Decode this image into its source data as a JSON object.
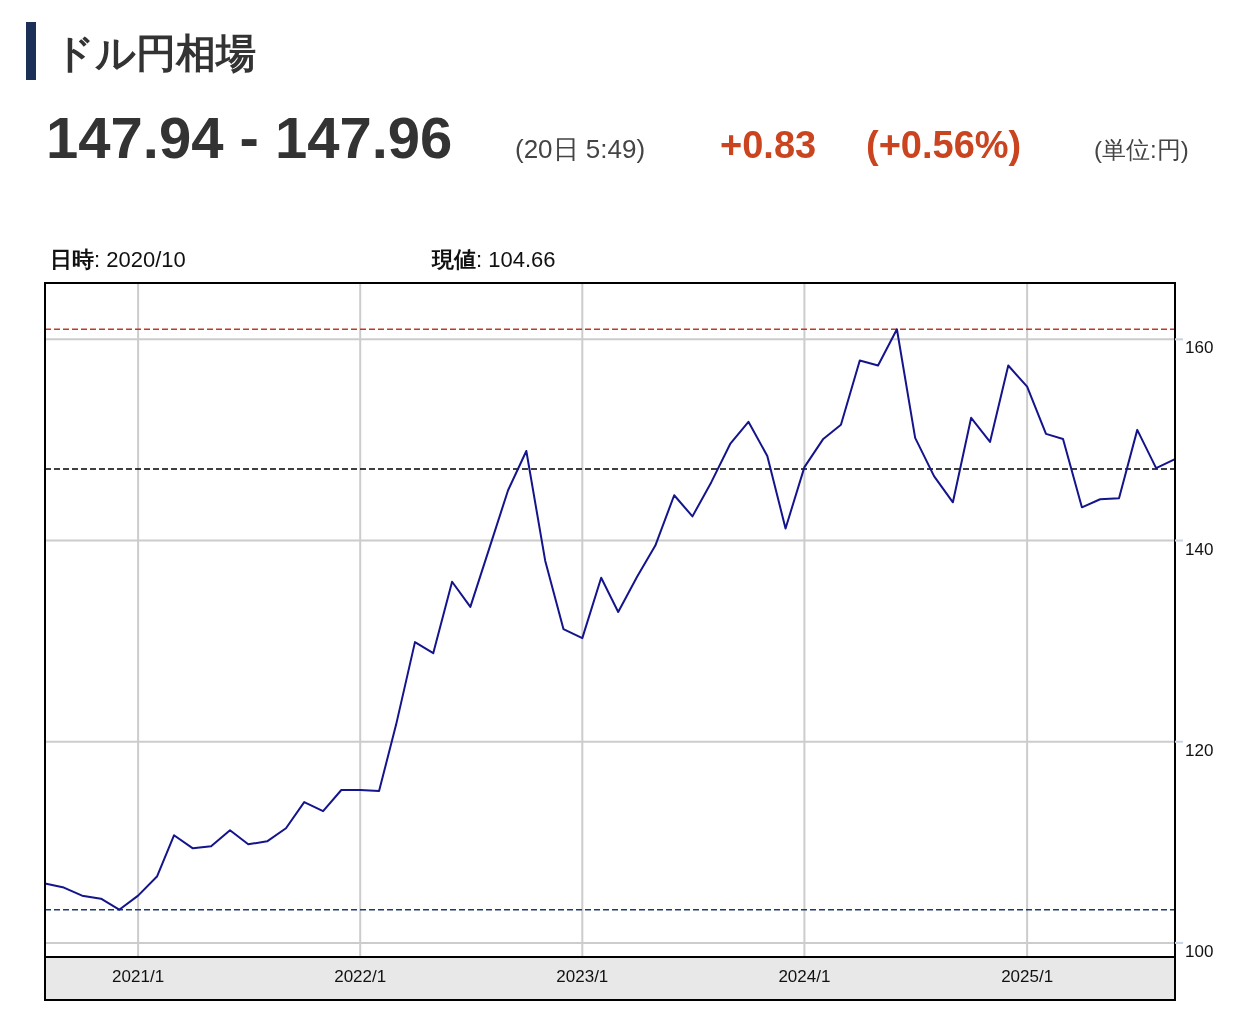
{
  "chart_data": {
    "type": "line",
    "title": "ドル円相場",
    "annotations": [
      "147.94 - 147.96",
      "(20日 5:49)",
      "+0.83",
      "(+0.56%)",
      "(単位:円)",
      "日時: 2020/10",
      "現値: 104.66"
    ],
    "x": [
      "2020-08",
      "2020-09",
      "2020-10",
      "2020-11",
      "2020-12",
      "2021-01",
      "2021-02",
      "2021-03",
      "2021-04",
      "2021-05",
      "2021-06",
      "2021-07",
      "2021-08",
      "2021-09",
      "2021-10",
      "2021-11",
      "2021-12",
      "2022-01",
      "2022-02",
      "2022-03",
      "2022-04",
      "2022-05",
      "2022-06",
      "2022-07",
      "2022-08",
      "2022-09",
      "2022-10",
      "2022-11",
      "2022-12",
      "2023-01",
      "2023-02",
      "2023-03",
      "2023-04",
      "2023-05",
      "2023-06",
      "2023-07",
      "2023-08",
      "2023-09",
      "2023-10",
      "2023-11",
      "2023-12",
      "2024-01",
      "2024-02",
      "2024-03",
      "2024-04",
      "2024-05",
      "2024-06",
      "2024-07",
      "2024-08",
      "2024-09",
      "2024-10",
      "2024-11",
      "2024-12",
      "2025-01",
      "2025-02",
      "2025-03",
      "2025-04",
      "2025-05",
      "2025-06",
      "2025-07",
      "2025-08",
      "2025-09"
    ],
    "series": [
      {
        "color": "#14148c",
        "values": [
          105.9,
          105.5,
          104.7,
          104.4,
          103.3,
          104.7,
          106.6,
          110.7,
          109.4,
          109.6,
          111.2,
          109.8,
          110.1,
          111.4,
          114.0,
          113.1,
          115.2,
          115.2,
          115.1,
          121.7,
          129.9,
          128.8,
          135.9,
          133.4,
          139.2,
          145.0,
          148.9,
          138.0,
          131.2,
          130.3,
          136.3,
          132.9,
          136.4,
          139.5,
          144.5,
          142.4,
          145.8,
          149.6,
          151.8,
          148.4,
          141.2,
          147.3,
          150.1,
          151.5,
          157.9,
          157.4,
          161.0,
          150.2,
          146.4,
          143.8,
          152.2,
          149.8,
          157.4,
          155.3,
          150.6,
          150.1,
          143.3,
          144.1,
          144.2,
          151.0,
          147.2,
          148.1
        ]
      }
    ],
    "xlim": [
      "2020-08",
      "2025-09"
    ],
    "xticks": [
      {
        "value": "2021-01",
        "label": "2021/1"
      },
      {
        "value": "2022-01",
        "label": "2022/1"
      },
      {
        "value": "2023-01",
        "label": "2023/1"
      },
      {
        "value": "2024-01",
        "label": "2024/1"
      },
      {
        "value": "2025-01",
        "label": "2025/1"
      }
    ],
    "ylim": [
      98.6,
      165.6
    ],
    "yticks": [
      100,
      120,
      140,
      160
    ],
    "ref_lines": [
      {
        "axis": "y",
        "value": 161.0,
        "color": "#c0392b",
        "line_style": "dashed"
      },
      {
        "axis": "y",
        "value": 147.1,
        "color": "#000000",
        "line_style": "dashed"
      },
      {
        "axis": "y",
        "value": 103.3,
        "color": "#1f3a6e",
        "line_style": "dashed"
      }
    ],
    "grid": true,
    "marker": "none",
    "line_style": "solid"
  }
}
